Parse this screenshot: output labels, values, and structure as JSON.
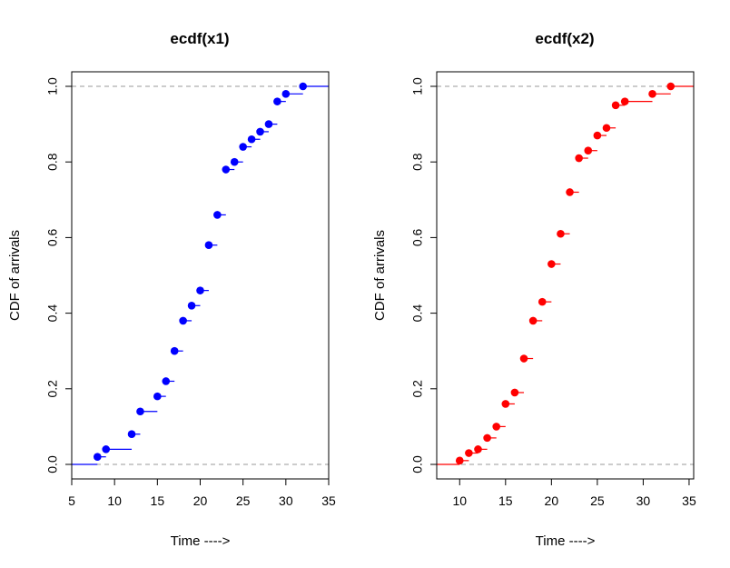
{
  "chart_data": [
    {
      "type": "scatter",
      "title": "ecdf(x1)",
      "xlabel": "Time ---->",
      "ylabel": "CDF of arrivals",
      "xlim": [
        5,
        35
      ],
      "ylim": [
        0,
        1
      ],
      "xticks": [
        5,
        10,
        15,
        20,
        25,
        30,
        35
      ],
      "yticks": [
        0.0,
        0.2,
        0.4,
        0.6,
        0.8,
        1.0
      ],
      "ytick_labels": [
        "0.0",
        "0.2",
        "0.4",
        "0.6",
        "0.8",
        "1.0"
      ],
      "grid": false,
      "reference_lines": [
        0,
        1
      ],
      "color": "#0000ff",
      "x": [
        8,
        9,
        12,
        13,
        15,
        16,
        17,
        18,
        19,
        20,
        21,
        22,
        23,
        24,
        25,
        26,
        27,
        28,
        29,
        30,
        32
      ],
      "y": [
        0.02,
        0.04,
        0.08,
        0.14,
        0.18,
        0.22,
        0.3,
        0.38,
        0.42,
        0.46,
        0.58,
        0.66,
        0.78,
        0.8,
        0.84,
        0.86,
        0.88,
        0.9,
        0.96,
        0.98,
        1.0
      ]
    },
    {
      "type": "scatter",
      "title": "ecdf(x2)",
      "xlabel": "Time ---->",
      "ylabel": "CDF of arrivals",
      "xlim": [
        7.5,
        35.5
      ],
      "ylim": [
        0,
        1
      ],
      "xticks": [
        10,
        15,
        20,
        25,
        30,
        35
      ],
      "yticks": [
        0.0,
        0.2,
        0.4,
        0.6,
        0.8,
        1.0
      ],
      "ytick_labels": [
        "0.0",
        "0.2",
        "0.4",
        "0.6",
        "0.8",
        "1.0"
      ],
      "grid": false,
      "reference_lines": [
        0,
        1
      ],
      "color": "#ff0000",
      "x": [
        10,
        11,
        12,
        13,
        14,
        15,
        16,
        17,
        18,
        19,
        20,
        21,
        22,
        23,
        24,
        25,
        26,
        27,
        28,
        31,
        33
      ],
      "y": [
        0.01,
        0.03,
        0.04,
        0.07,
        0.1,
        0.16,
        0.19,
        0.28,
        0.38,
        0.43,
        0.53,
        0.61,
        0.72,
        0.81,
        0.83,
        0.87,
        0.89,
        0.95,
        0.96,
        0.98,
        1.0
      ]
    }
  ]
}
